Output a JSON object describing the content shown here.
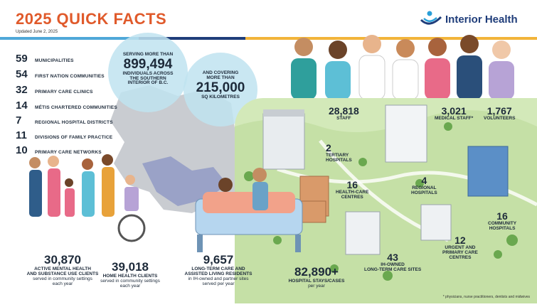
{
  "header": {
    "title": "2025 QUICK FACTS",
    "updated": "Updated June 2, 2025",
    "logo": "Interior Health"
  },
  "colors": {
    "title": "#e05a2b",
    "brand_blue": "#1f3d7a",
    "circle": "#bfe3f0",
    "green": "#d3e9b9"
  },
  "left_stats": [
    {
      "value": "59",
      "label": "MUNICIPALITIES"
    },
    {
      "value": "54",
      "label": "FIRST NATION COMMUNITIES"
    },
    {
      "value": "32",
      "label": "PRIMARY CARE CLINICS"
    },
    {
      "value": "14",
      "label": "MÉTIS CHARTERED COMMUNITIES"
    },
    {
      "value": "7",
      "label": "REGIONAL HOSPITAL DISTRICTS"
    },
    {
      "value": "11",
      "label": "DIVISIONS OF FAMILY PRACTICE"
    },
    {
      "value": "10",
      "label": "PRIMARY CARE NETWORKS"
    }
  ],
  "population": {
    "pre": "SERVING MORE THAN",
    "value": "899,494",
    "post1": "INDIVIDUALS ACROSS",
    "post2": "THE SOUTHERN",
    "post3": "INTERIOR OF B.C."
  },
  "area": {
    "pre1": "AND COVERING",
    "pre2": "MORE THAN",
    "value": "215,000",
    "post": "SQ KILOMETRES"
  },
  "staff": [
    {
      "value": "28,818",
      "label": "STAFF"
    },
    {
      "value": "3,021",
      "label": "MEDICAL STAFF*"
    },
    {
      "value": "1,767",
      "label": "VOLUNTEERS"
    }
  ],
  "facilities": {
    "tertiary": {
      "value": "2",
      "label1": "TERTIARY",
      "label2": "HOSPITALS"
    },
    "health_centres": {
      "value": "16",
      "label1": "HEALTH-CARE",
      "label2": "CENTRES"
    },
    "regional": {
      "value": "4",
      "label1": "REGIONAL",
      "label2": "HOSPITALS"
    },
    "community": {
      "value": "16",
      "label1": "COMMUNITY",
      "label2": "HOSPITALS"
    },
    "urgent": {
      "value": "12",
      "label1": "URGENT AND",
      "label2": "PRIMARY CARE",
      "label3": "CENTRES"
    },
    "ltc": {
      "value": "43",
      "label1": "IH-OWNED",
      "label2": "LONG-TERM CARE SITES"
    }
  },
  "bottom": [
    {
      "value": "30,870",
      "label1": "ACTIVE MENTAL HEALTH",
      "label2": "AND SUBSTANCE USE CLIENTS",
      "sub1": "served in community settings",
      "sub2": "each year"
    },
    {
      "value": "39,018",
      "label1": "HOME HEALTH CLIENTS",
      "label2": "",
      "sub1": "served in community settings",
      "sub2": "each year"
    },
    {
      "value": "9,657",
      "label1": "LONG-TERM CARE AND",
      "label2": "ASSISTED LIVING RESIDENTS",
      "sub1": "in IH-owned and partner sites",
      "sub2": "served per year"
    },
    {
      "value": "82,890+",
      "label1": "HOSPITAL STAYS/CASES",
      "label2": "",
      "sub1": "per year",
      "sub2": ""
    }
  ],
  "footnote": "* physicians, nurse practitioners, dentists and midwives"
}
